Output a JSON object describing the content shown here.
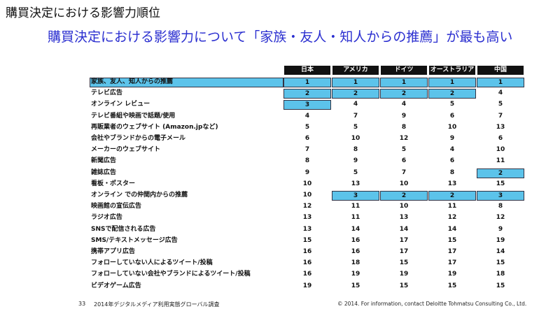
{
  "header": {
    "title": "購買決定における影響力順位",
    "subtitle": "購買決定における影響力について「家族・友人・知人からの推薦」が最も高い"
  },
  "table": {
    "columns": [
      "日本",
      "アメリカ",
      "ドイツ",
      "オーストラリア",
      "中国"
    ],
    "rows": [
      {
        "label": "家族、友人、知人からの推薦",
        "values": [
          1,
          1,
          1,
          1,
          1
        ],
        "highlight": [
          true,
          true,
          true,
          true,
          true
        ],
        "highlight_label": true
      },
      {
        "label": "テレビ広告",
        "values": [
          2,
          2,
          2,
          2,
          4
        ],
        "highlight": [
          true,
          true,
          true,
          true,
          false
        ]
      },
      {
        "label": "オンライン レビュー",
        "values": [
          3,
          4,
          4,
          5,
          5
        ],
        "highlight": [
          true,
          false,
          false,
          false,
          false
        ]
      },
      {
        "label": "テレビ番組や映画で話題/使用",
        "values": [
          4,
          7,
          9,
          6,
          7
        ],
        "highlight": [
          false,
          false,
          false,
          false,
          false
        ]
      },
      {
        "label": "再販業者のウェブサイト (Amazon.jpなど)",
        "values": [
          5,
          5,
          8,
          10,
          13
        ],
        "highlight": [
          false,
          false,
          false,
          false,
          false
        ]
      },
      {
        "label": "会社やブランドからの電子メール",
        "values": [
          6,
          10,
          12,
          9,
          6
        ],
        "highlight": [
          false,
          false,
          false,
          false,
          false
        ]
      },
      {
        "label": "メーカーのウェブサイト",
        "values": [
          7,
          8,
          5,
          4,
          10
        ],
        "highlight": [
          false,
          false,
          false,
          false,
          false
        ]
      },
      {
        "label": "新聞広告",
        "values": [
          8,
          9,
          6,
          6,
          11
        ],
        "highlight": [
          false,
          false,
          false,
          false,
          false
        ]
      },
      {
        "label": "雑誌広告",
        "values": [
          9,
          5,
          7,
          8,
          2
        ],
        "highlight": [
          false,
          false,
          false,
          false,
          true
        ]
      },
      {
        "label": "看板・ポスター",
        "values": [
          10,
          13,
          10,
          13,
          15
        ],
        "highlight": [
          false,
          false,
          false,
          false,
          false
        ]
      },
      {
        "label": "オンライン での仲間内からの推薦",
        "values": [
          10,
          3,
          2,
          2,
          3
        ],
        "highlight": [
          false,
          true,
          true,
          true,
          true
        ]
      },
      {
        "label": "映画館の宣伝広告",
        "values": [
          12,
          11,
          10,
          11,
          8
        ],
        "highlight": [
          false,
          false,
          false,
          false,
          false
        ]
      },
      {
        "label": "ラジオ広告",
        "values": [
          13,
          11,
          13,
          12,
          12
        ],
        "highlight": [
          false,
          false,
          false,
          false,
          false
        ]
      },
      {
        "label": "SNSで配信される広告",
        "values": [
          13,
          14,
          14,
          14,
          9
        ],
        "highlight": [
          false,
          false,
          false,
          false,
          false
        ]
      },
      {
        "label": "SMS/テキストメッセージ広告",
        "values": [
          15,
          16,
          17,
          15,
          19
        ],
        "highlight": [
          false,
          false,
          false,
          false,
          false
        ]
      },
      {
        "label": "携帯アプリ広告",
        "values": [
          16,
          16,
          17,
          17,
          14
        ],
        "highlight": [
          false,
          false,
          false,
          false,
          false
        ]
      },
      {
        "label": "フォローしていない人によるツイート/投稿",
        "values": [
          16,
          18,
          15,
          17,
          15
        ],
        "highlight": [
          false,
          false,
          false,
          false,
          false
        ]
      },
      {
        "label": "フォローしていない会社やブランドによるツイート/投稿",
        "values": [
          16,
          19,
          19,
          19,
          18
        ],
        "highlight": [
          false,
          false,
          false,
          false,
          false
        ]
      },
      {
        "label": "ビデオゲーム広告",
        "values": [
          19,
          15,
          15,
          15,
          15
        ],
        "highlight": [
          false,
          false,
          false,
          false,
          false
        ]
      }
    ]
  },
  "footer": {
    "page": "33",
    "source": "2014年デジタルメディア利用実態グローバル調査",
    "copyright": "© 2014. For information, contact Deloitte Tohmatsu Consulting Co., Ltd."
  }
}
